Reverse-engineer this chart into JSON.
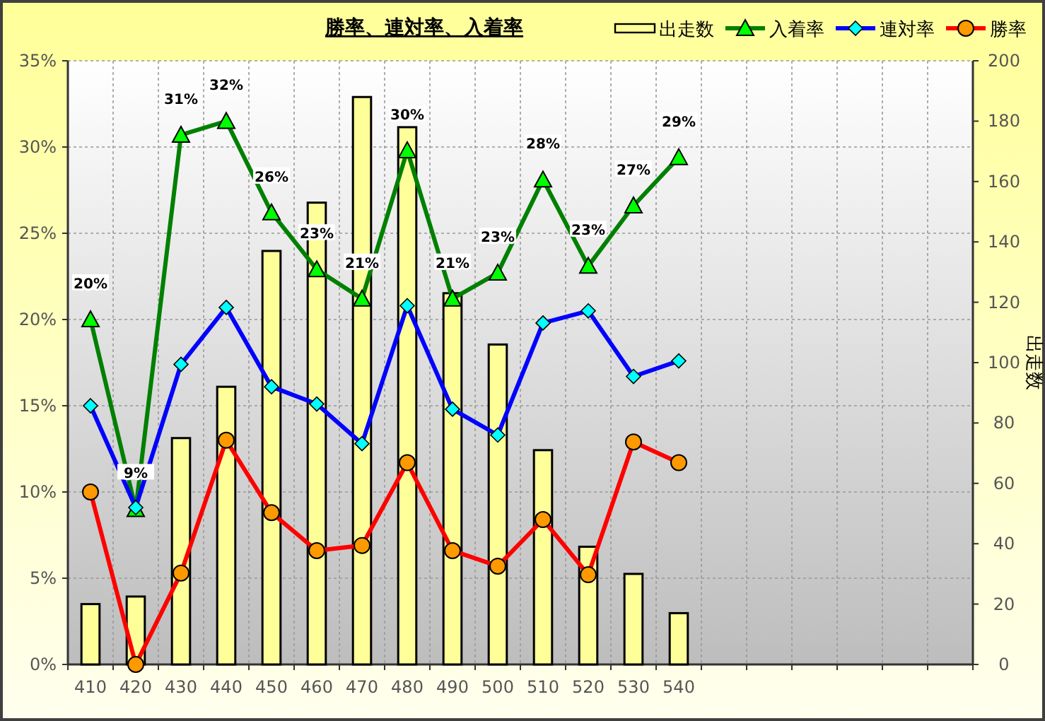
{
  "chart_data": {
    "type": "line",
    "title": "勝率、連対率、入着率",
    "y2label": "出走数",
    "categories": [
      "410",
      "420",
      "430",
      "440",
      "450",
      "460",
      "470",
      "480",
      "490",
      "500",
      "510",
      "520",
      "530",
      "540",
      null,
      null,
      null,
      null,
      null,
      null
    ],
    "series": [
      {
        "name": "出走数",
        "type": "bar",
        "axis": "y2",
        "color": "#ffff99",
        "values": [
          20,
          22.5,
          75,
          92,
          137,
          153,
          188,
          178,
          123,
          106,
          71,
          39,
          30,
          17,
          null,
          null,
          null,
          null,
          null,
          null
        ]
      },
      {
        "name": "入着率",
        "color": "#008000",
        "marker": "triangle",
        "values": [
          20,
          9,
          30.7,
          31.5,
          26.2,
          22.9,
          21.2,
          29.8,
          21.2,
          22.7,
          28.1,
          23.1,
          26.6,
          29.4,
          null,
          null,
          null,
          null,
          null,
          null
        ],
        "value_labels": [
          "20%",
          "9%",
          "31%",
          "32%",
          "26%",
          "23%",
          "21%",
          "30%",
          "21%",
          "23%",
          "28%",
          "23%",
          "27%",
          "29%",
          null,
          null,
          null,
          null,
          null,
          null
        ]
      },
      {
        "name": "連対率",
        "color": "#0000ff",
        "marker": "diamond",
        "values": [
          15.0,
          9.1,
          17.4,
          20.7,
          16.1,
          15.1,
          12.8,
          20.8,
          14.8,
          13.3,
          19.8,
          20.5,
          16.7,
          17.6,
          null,
          null,
          null,
          null,
          null,
          null
        ]
      },
      {
        "name": "勝率",
        "color": "#ff0000",
        "marker": "circle",
        "values": [
          10.0,
          0,
          5.3,
          13.0,
          8.8,
          6.6,
          6.9,
          11.7,
          6.6,
          5.7,
          8.4,
          5.2,
          12.9,
          11.7,
          null,
          null,
          null,
          null,
          null,
          null
        ]
      }
    ],
    "ylim": [
      0,
      35
    ],
    "yticks": [
      {
        "value": 0,
        "label": "0%"
      },
      {
        "value": 5,
        "label": "5%"
      },
      {
        "value": 10,
        "label": "10%"
      },
      {
        "value": 15,
        "label": "15%"
      },
      {
        "value": 20,
        "label": "20%"
      },
      {
        "value": 25,
        "label": "25%"
      },
      {
        "value": 30,
        "label": "30%"
      },
      {
        "value": 35,
        "label": "35%"
      }
    ],
    "y2lim": [
      0,
      200
    ],
    "y2ticks": [
      0,
      20,
      40,
      60,
      80,
      100,
      120,
      140,
      160,
      180,
      200
    ],
    "grid": true,
    "legend": "top right"
  }
}
